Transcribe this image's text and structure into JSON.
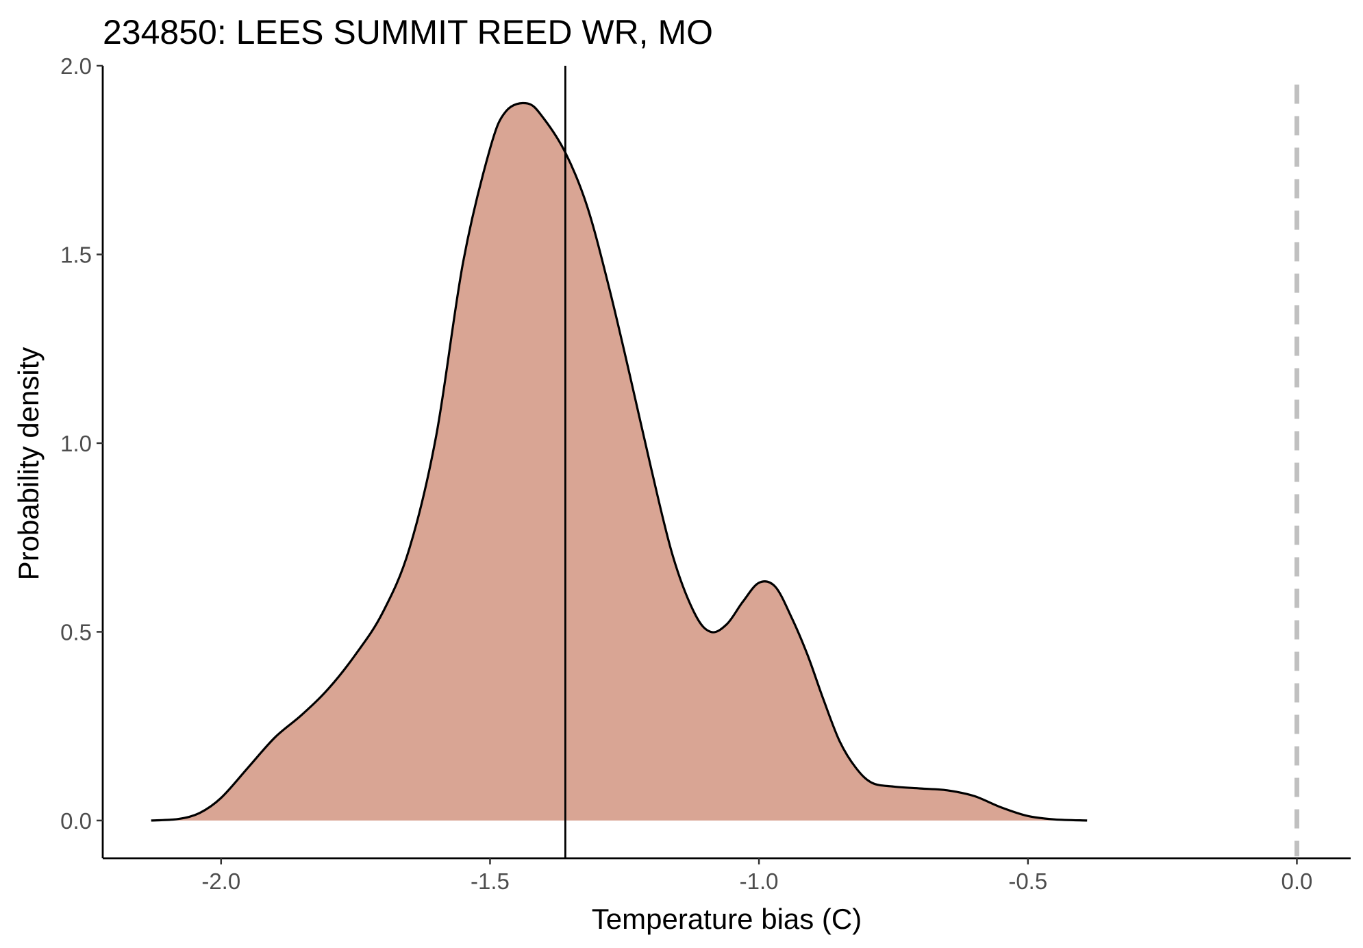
{
  "chart_data": {
    "type": "area",
    "title": "234850: LEES SUMMIT REED WR, MO",
    "xlabel": "Temperature bias (C)",
    "ylabel": "Probability density",
    "xlim": [
      -2.22,
      0.1
    ],
    "ylim": [
      -0.1,
      2.0
    ],
    "x_ticks": [
      -2.0,
      -1.5,
      -1.0,
      -0.5,
      0.0
    ],
    "x_tick_labels": [
      "-2.0",
      "-1.5",
      "-1.0",
      "-0.5",
      "0.0"
    ],
    "y_ticks": [
      0.0,
      0.5,
      1.0,
      1.5,
      2.0
    ],
    "y_tick_labels": [
      "0.0",
      "0.5",
      "1.0",
      "1.5",
      "2.0"
    ],
    "grid": false,
    "legend": "none",
    "fill_color": "#d9a594",
    "line_color": "#000000",
    "reference_lines": [
      {
        "name": "mean",
        "x": -1.36,
        "style": "solid",
        "color": "#000000"
      },
      {
        "name": "zero",
        "x": 0.0,
        "style": "dashed",
        "color": "#c0c0c0"
      }
    ],
    "series": [
      {
        "x": [
          -2.13,
          -2.08,
          -2.04,
          -2.0,
          -1.95,
          -1.9,
          -1.85,
          -1.8,
          -1.75,
          -1.7,
          -1.65,
          -1.6,
          -1.55,
          -1.5,
          -1.47,
          -1.43,
          -1.4,
          -1.36,
          -1.32,
          -1.28,
          -1.24,
          -1.2,
          -1.16,
          -1.12,
          -1.09,
          -1.06,
          -1.03,
          -1.0,
          -0.97,
          -0.94,
          -0.91,
          -0.88,
          -0.85,
          -0.82,
          -0.79,
          -0.75,
          -0.7,
          -0.65,
          -0.6,
          -0.55,
          -0.5,
          -0.45,
          -0.39
        ],
        "y": [
          0.0,
          0.004,
          0.02,
          0.06,
          0.14,
          0.22,
          0.28,
          0.35,
          0.44,
          0.55,
          0.72,
          1.02,
          1.48,
          1.78,
          1.88,
          1.9,
          1.86,
          1.77,
          1.63,
          1.42,
          1.18,
          0.93,
          0.7,
          0.55,
          0.5,
          0.52,
          0.58,
          0.63,
          0.62,
          0.54,
          0.44,
          0.32,
          0.21,
          0.14,
          0.1,
          0.09,
          0.085,
          0.08,
          0.065,
          0.035,
          0.012,
          0.003,
          0.0
        ]
      }
    ]
  }
}
